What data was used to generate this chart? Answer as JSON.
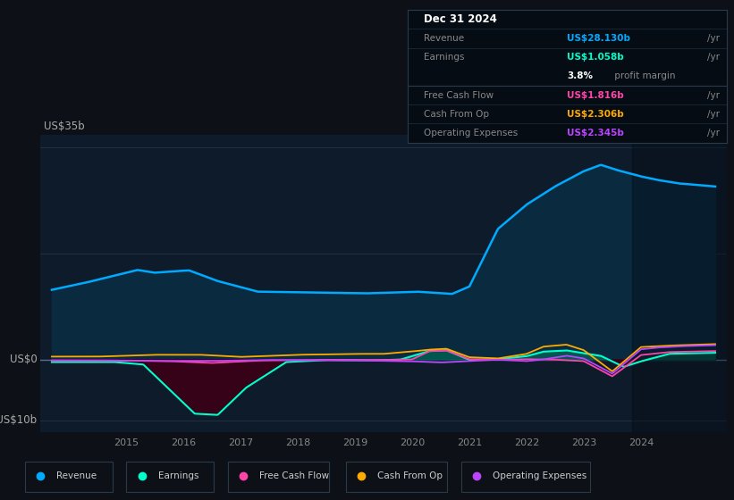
{
  "bg_color": "#0d1117",
  "plot_bg_color": "#0d1b2a",
  "grid_color": "#253545",
  "zero_line_color": "#5a7090",
  "title_label": "US$35b",
  "bottom_label": "-US$10b",
  "zero_label": "US$0",
  "x_ticks": [
    2015,
    2016,
    2017,
    2018,
    2019,
    2020,
    2021,
    2022,
    2023,
    2024
  ],
  "ylim": [
    -12,
    37
  ],
  "xlim": [
    2013.5,
    2025.5
  ],
  "revenue_color": "#00aaff",
  "earnings_color": "#00ffcc",
  "fcf_color": "#ff44aa",
  "cashfromop_color": "#ffaa00",
  "opex_color": "#bb44ff",
  "revenue_fill_color": "#0a2a40",
  "earnings_neg_fill_color": "#3a0015",
  "info_box": {
    "date": "Dec 31 2024",
    "revenue_val": "US$28.130b",
    "earnings_val": "US$1.058b",
    "profit_margin": "3.8%",
    "fcf_val": "US$1.816b",
    "cashfromop_val": "US$2.306b",
    "opex_val": "US$2.345b"
  },
  "legend": [
    {
      "label": "Revenue",
      "color": "#00aaff"
    },
    {
      "label": "Earnings",
      "color": "#00ffcc"
    },
    {
      "label": "Free Cash Flow",
      "color": "#ff44aa"
    },
    {
      "label": "Cash From Op",
      "color": "#ffaa00"
    },
    {
      "label": "Operating Expenses",
      "color": "#bb44ff"
    }
  ]
}
